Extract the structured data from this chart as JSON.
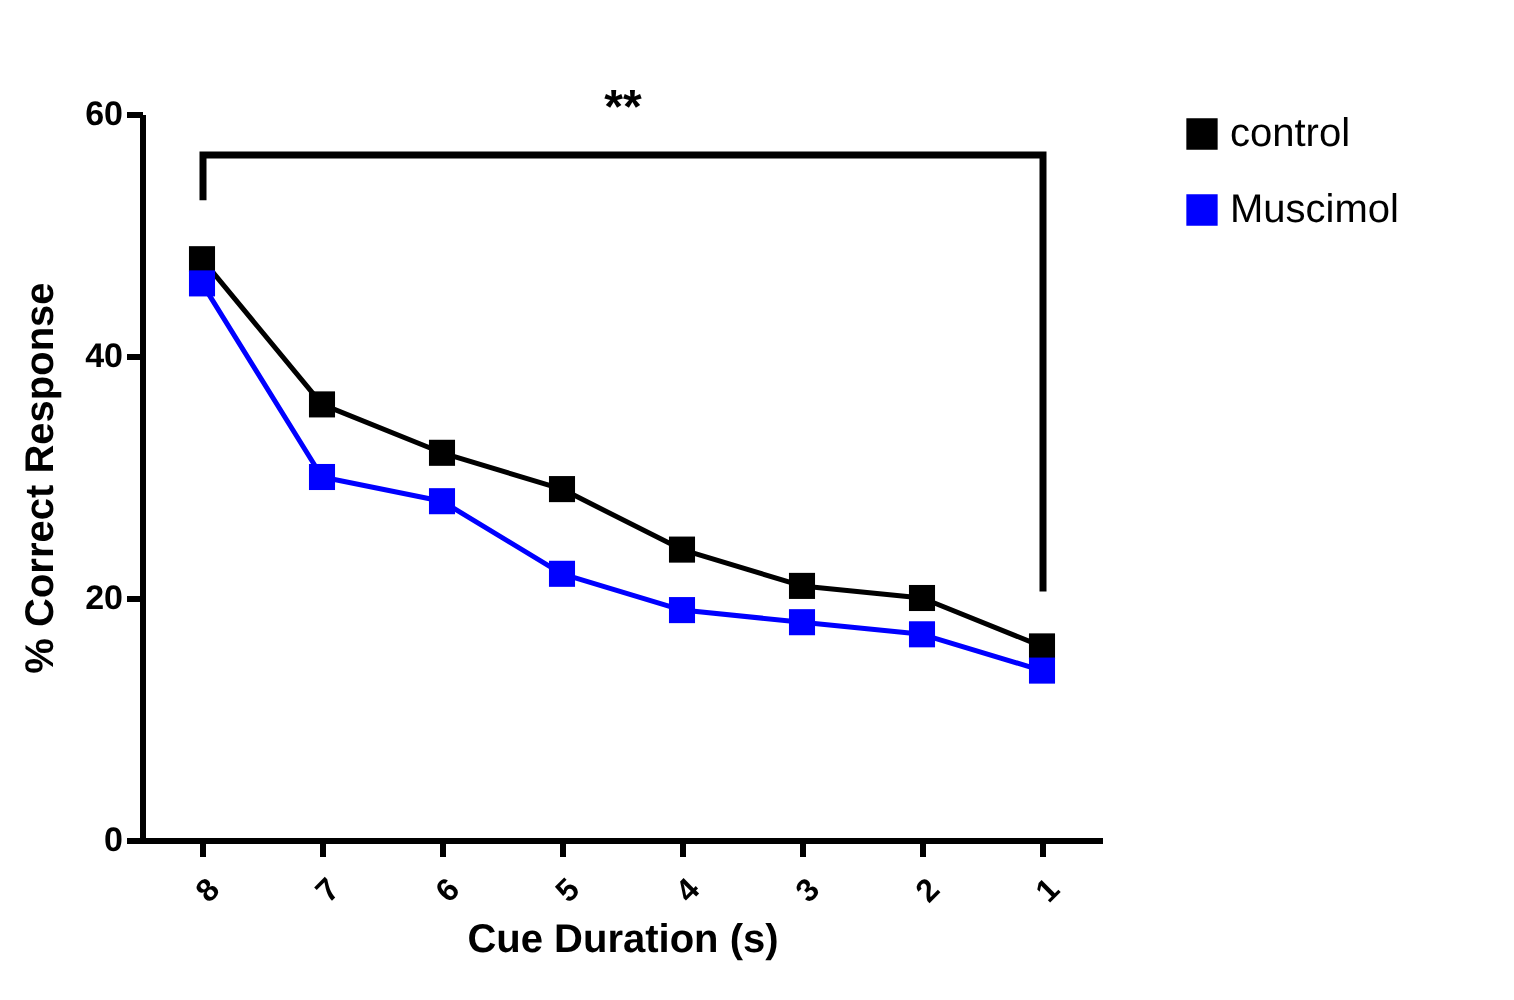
{
  "chart_data": {
    "type": "line",
    "xlabel": "Cue Duration (s)",
    "ylabel": "% Correct Response",
    "categories": [
      "8",
      "7",
      "6",
      "5",
      "4",
      "3",
      "2",
      "1"
    ],
    "series": [
      {
        "name": "control",
        "color": "#000000",
        "values": [
          48,
          36,
          32,
          29,
          24,
          21,
          20,
          16
        ]
      },
      {
        "name": "Muscimol",
        "color": "#0000ff",
        "values": [
          46,
          30,
          28,
          22,
          19,
          18,
          17,
          14
        ]
      }
    ],
    "ylim": [
      0,
      60
    ],
    "yticks": [
      0,
      20,
      40,
      60
    ],
    "marker": "square",
    "grid": false,
    "legend": "top right",
    "annotations": [
      "**"
    ]
  }
}
